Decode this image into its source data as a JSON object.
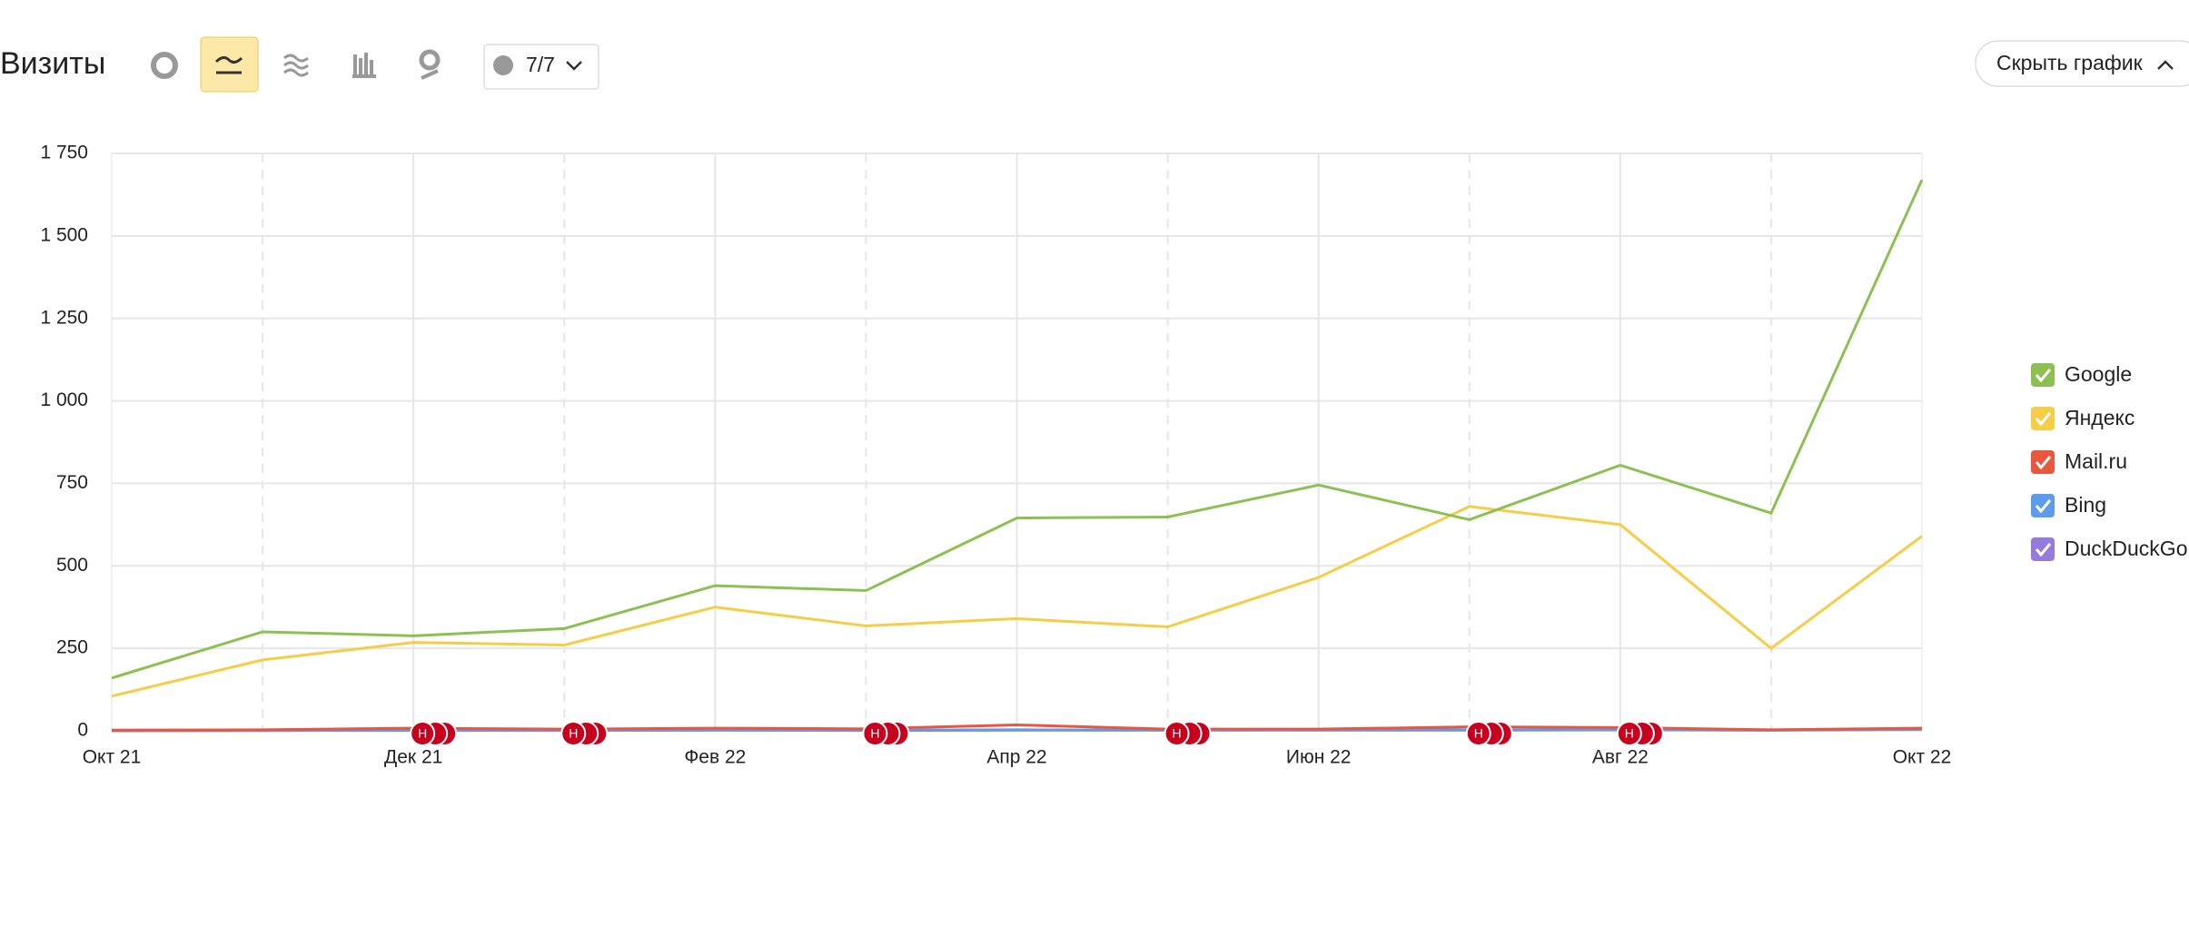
{
  "header": {
    "title": "Визиты",
    "comments": "7/7",
    "hide_button": "Скрыть график"
  },
  "chart_data": {
    "type": "line",
    "categories": [
      "Окт 21",
      null,
      "Дек 21",
      null,
      "Фев 22",
      null,
      "Апр 22",
      null,
      "Июн 22",
      null,
      "Авг 22",
      null,
      "Окт 22"
    ],
    "series": [
      {
        "name": "Google",
        "color": "#8cc152",
        "values": [
          160,
          300,
          288,
          310,
          440,
          425,
          645,
          648,
          745,
          640,
          805,
          660,
          1670
        ]
      },
      {
        "name": "Яндекс",
        "color": "#f5cd47",
        "values": [
          105,
          215,
          268,
          260,
          375,
          318,
          340,
          315,
          465,
          680,
          625,
          250,
          590
        ]
      },
      {
        "name": "Mail.ru",
        "color": "#e9573f",
        "values": [
          2,
          3,
          8,
          5,
          8,
          6,
          18,
          5,
          5,
          12,
          10,
          3,
          8
        ]
      },
      {
        "name": "Bing",
        "color": "#5d9cec",
        "values": [
          1,
          1,
          2,
          2,
          2,
          2,
          3,
          2,
          3,
          3,
          3,
          2,
          4
        ]
      },
      {
        "name": "DuckDuckGo",
        "color": "#967adc",
        "values": [
          0,
          1,
          1,
          1,
          2,
          1,
          2,
          2,
          2,
          2,
          3,
          2,
          5
        ]
      }
    ],
    "ylim": [
      0,
      1750
    ],
    "yticks": [
      0,
      250,
      500,
      750,
      {
        "value": 1000,
        "label": "1 000"
      },
      {
        "value": 1250,
        "label": "1 250"
      },
      {
        "value": 1500,
        "label": "1 500"
      },
      {
        "value": 1750,
        "label": "1 750"
      }
    ],
    "grid": true,
    "legend": "right",
    "annotations": [
      {
        "index": 2,
        "label": "Н"
      },
      {
        "index": 3,
        "label": "Н"
      },
      {
        "index": 5,
        "label": "Н"
      },
      {
        "index": 7,
        "label": "Н"
      },
      {
        "index": 9,
        "label": "Н"
      },
      {
        "index": 10,
        "label": "Н"
      }
    ]
  }
}
